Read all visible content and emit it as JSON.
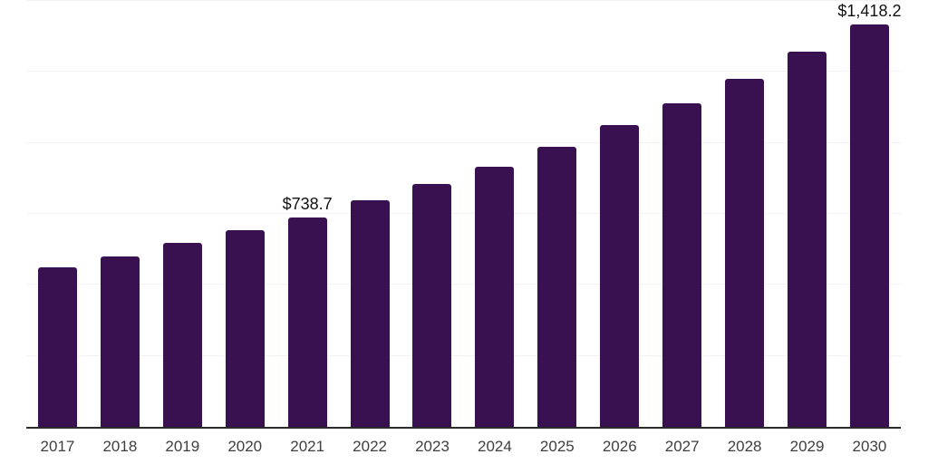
{
  "chart_data": {
    "type": "bar",
    "title": "",
    "xlabel": "",
    "ylabel": "",
    "categories": [
      "2017",
      "2018",
      "2019",
      "2020",
      "2021",
      "2022",
      "2023",
      "2024",
      "2025",
      "2026",
      "2027",
      "2028",
      "2029",
      "2030"
    ],
    "values": [
      562,
      600,
      648,
      693,
      738.7,
      798,
      855,
      916,
      986,
      1063,
      1139,
      1226,
      1321,
      1418.2
    ],
    "value_labels": [
      "",
      "",
      "",
      "",
      "$738.7",
      "",
      "",
      "",
      "",
      "",
      "",
      "",
      "",
      "$1,418.2"
    ],
    "ylim": [
      0,
      1500
    ],
    "gridline_step": 250,
    "grid": "horizontal",
    "y_tick_labels_shown": false,
    "legend_position": "none"
  },
  "colors": {
    "background": "#ffffff",
    "bar": "#3a1150",
    "axis": "#2b2b2b",
    "gridline": "#f2f2f2",
    "tick_label": "#3f3f3f",
    "value_label": "#111111"
  }
}
